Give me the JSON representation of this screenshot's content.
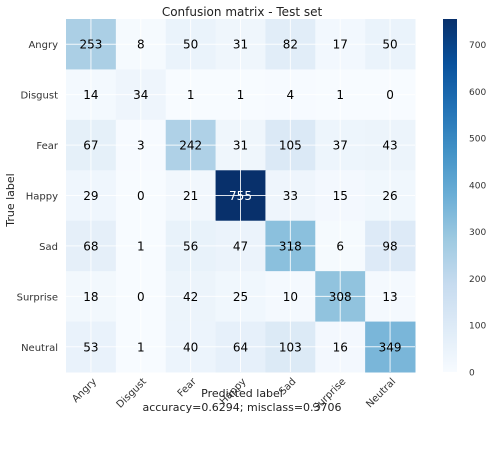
{
  "chart_data": {
    "type": "heatmap",
    "title": "Confusion matrix - Test set",
    "ylabel": "True label",
    "xlabel": "Predicted label",
    "xlabel_line2": "accuracy=0.6294; misclass=0.3706",
    "classes": [
      "Angry",
      "Disgust",
      "Fear",
      "Happy",
      "Sad",
      "Surprise",
      "Neutral"
    ],
    "matrix": [
      [
        253,
        8,
        50,
        31,
        82,
        17,
        50
      ],
      [
        14,
        34,
        1,
        1,
        4,
        1,
        0
      ],
      [
        67,
        3,
        242,
        31,
        105,
        37,
        43
      ],
      [
        29,
        0,
        21,
        755,
        33,
        15,
        26
      ],
      [
        68,
        1,
        56,
        47,
        318,
        6,
        98
      ],
      [
        18,
        0,
        42,
        25,
        10,
        308,
        13
      ],
      [
        53,
        1,
        40,
        64,
        103,
        16,
        349
      ]
    ],
    "colorbar": {
      "min": 0,
      "max": 755,
      "ticks": [
        "0",
        "100",
        "200",
        "300",
        "400",
        "500",
        "600",
        "700"
      ],
      "colormap": "Blues",
      "colors": [
        "#f7fbff",
        "#deebf7",
        "#c6dbef",
        "#9ecae1",
        "#6baed6",
        "#4292c6",
        "#2171b5",
        "#08519c",
        "#08306b"
      ]
    },
    "grid": true
  }
}
